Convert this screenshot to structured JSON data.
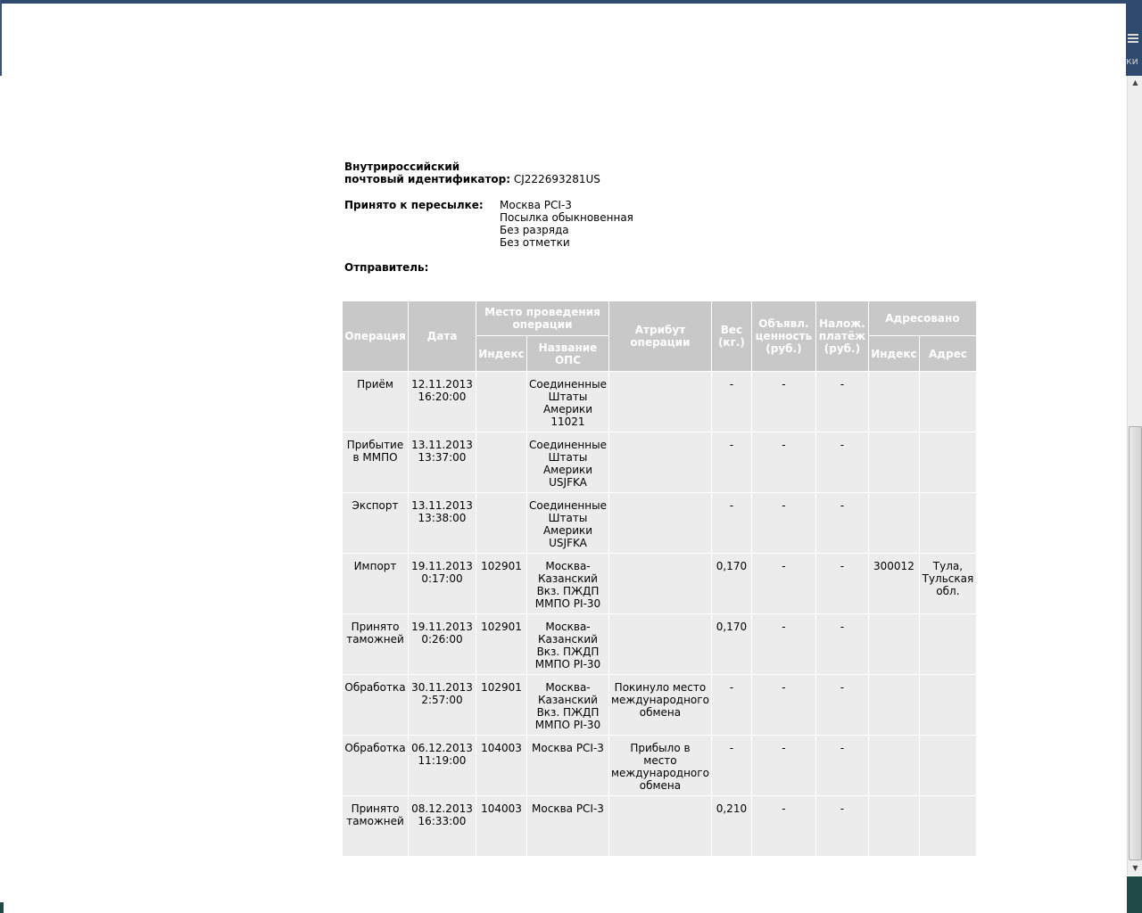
{
  "sidebar_label_fragment": "ки",
  "shipment": {
    "id_label_line1": "Внутрироссийский",
    "id_label_line2": "почтовый идентификатор:",
    "id_value": "CJ222693281US",
    "accepted_label": "Принято к пересылке:",
    "accepted_values": "Москва PCI-3\nПосылка обыкновенная\nБез разряда\nБез отметки",
    "sender_label": "Отправитель:"
  },
  "table": {
    "headers": {
      "operation": "Операция",
      "date": "Дата",
      "place": "Место проведения\nоперации",
      "place_index": "Индекс",
      "place_name": "Название\nОПС",
      "attribute": "Атрибут\nоперации",
      "weight": "Вес\n(кг.)",
      "declared": "Объявл.\nценность\n(руб.)",
      "cod": "Налож.\nплатёж\n(руб.)",
      "addressed": "Адресовано",
      "addr_index": "Индекс",
      "addr_address": "Адрес"
    },
    "rows": [
      [
        "Приём",
        "12.11.2013\n16:20:00",
        "",
        "Соединенные\nШтаты\nАмерики\n11021",
        "",
        "-",
        "-",
        "-",
        "",
        ""
      ],
      [
        "Прибытие\nв ММПО",
        "13.11.2013\n13:37:00",
        "",
        "Соединенные\nШтаты\nАмерики\nUSJFKA",
        "",
        "-",
        "-",
        "-",
        "",
        ""
      ],
      [
        "Экспорт",
        "13.11.2013\n13:38:00",
        "",
        "Соединенные\nШтаты\nАмерики\nUSJFKA",
        "",
        "-",
        "-",
        "-",
        "",
        ""
      ],
      [
        "Импорт",
        "19.11.2013\n0:17:00",
        "102901",
        "Москва-\nКазанский\nВкз. ПЖДП\nММПО PI-30",
        "",
        "0,170",
        "-",
        "-",
        "300012",
        "Тула,\nТульская\nобл."
      ],
      [
        "Принято\nтаможней",
        "19.11.2013\n0:26:00",
        "102901",
        "Москва-\nКазанский\nВкз. ПЖДП\nММПО PI-30",
        "",
        "0,170",
        "-",
        "-",
        "",
        ""
      ],
      [
        "Обработка",
        "30.11.2013\n2:57:00",
        "102901",
        "Москва-\nКазанский\nВкз. ПЖДП\nММПО PI-30",
        "Покинуло место\nмеждународного\nобмена",
        "-",
        "-",
        "-",
        "",
        ""
      ],
      [
        "Обработка",
        "06.12.2013\n11:19:00",
        "104003",
        "Москва PCI-3",
        "Прибыло в\nместо\nмеждународного\nобмена",
        "-",
        "-",
        "-",
        "",
        ""
      ],
      [
        "Принято\nтаможней",
        "08.12.2013\n16:33:00",
        "104003",
        "Москва PCI-3",
        "",
        "0,210",
        "-",
        "-",
        "",
        ""
      ]
    ]
  }
}
